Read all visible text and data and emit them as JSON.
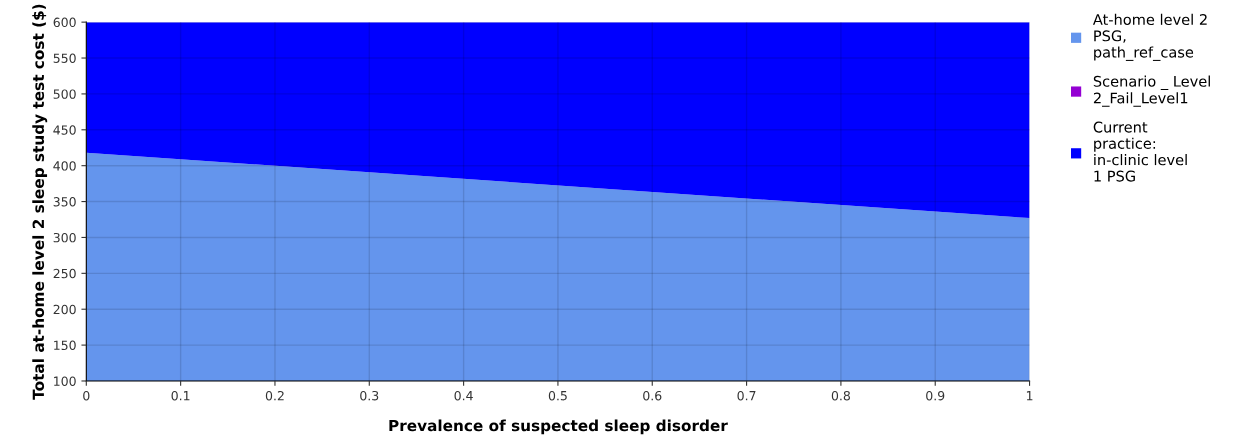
{
  "chart_data": {
    "type": "area",
    "xlabel": "Prevalence of suspected sleep disorder",
    "ylabel": "Total at-home level 2 sleep study test cost ($)",
    "x": [
      0,
      1
    ],
    "series": [
      {
        "name": "At-home level 2 PSG, path_ref_case",
        "color": "#6495ed",
        "values": [
          418,
          327
        ]
      },
      {
        "name": "Scenario _ Level 2_Fail_Level1",
        "color": "#9400d3",
        "values": [
          null,
          null
        ]
      },
      {
        "name": "Current practice: in-clinic level 1 PSG",
        "color": "#0000ff",
        "values": [
          600,
          600
        ]
      }
    ],
    "xlim": [
      0,
      1
    ],
    "xticks": [
      0,
      0.1,
      0.2,
      0.3,
      0.4,
      0.5,
      0.6,
      0.7,
      0.8,
      0.9,
      1
    ],
    "ylim": [
      100,
      600
    ],
    "yticks": [
      100,
      150,
      200,
      250,
      300,
      350,
      400,
      450,
      500,
      550,
      600
    ],
    "grid": true,
    "legend": "right"
  }
}
